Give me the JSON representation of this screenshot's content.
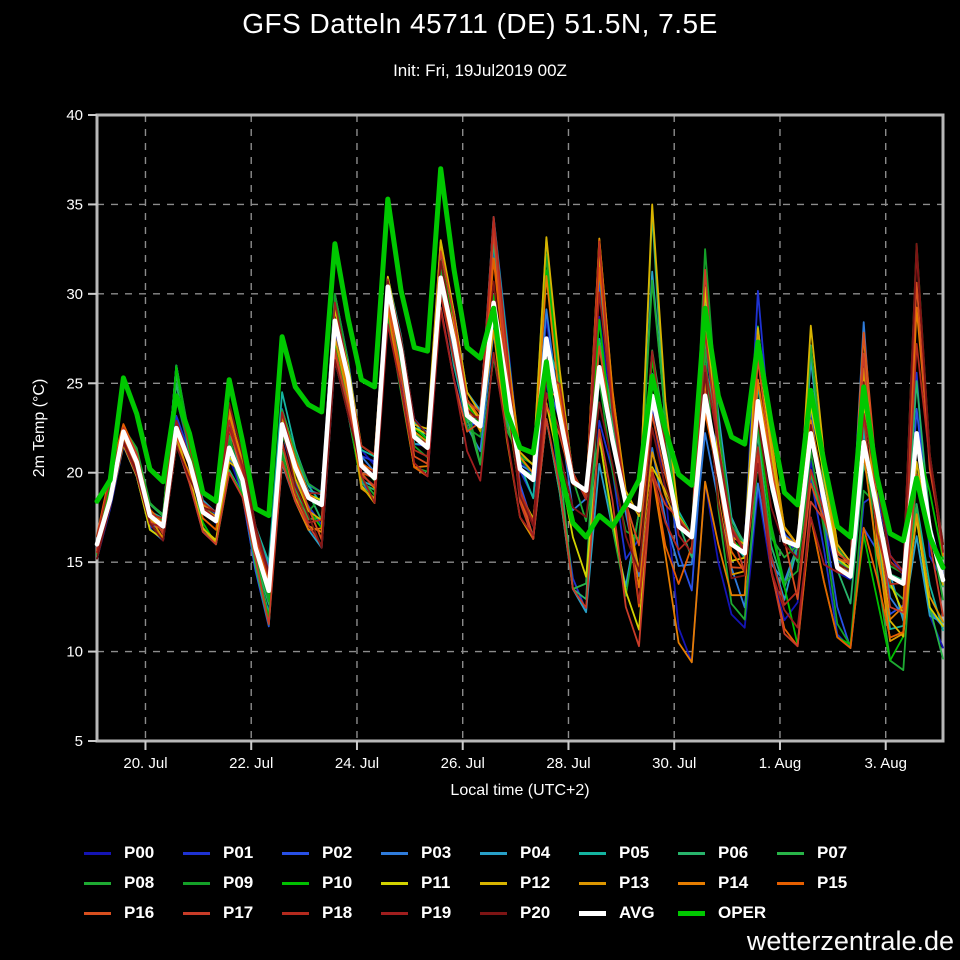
{
  "watermark": "wetterzentrale.de",
  "chart_data": {
    "type": "line",
    "title": "GFS Datteln 45711 (DE) 51.5N, 7.5E",
    "subtitle": "Init: Fri, 19Jul2019 00Z",
    "xlabel": "Local time (UTC+2)",
    "ylabel": "2m Temp (°C)",
    "ylim": [
      5,
      40
    ],
    "yticks": [
      5,
      10,
      15,
      20,
      25,
      30,
      35,
      40
    ],
    "grid": "dashed",
    "legend_position": "bottom",
    "x_unit": "hours since init (19 Jul 2019 02:00 local), 6h steps",
    "x_hours": [
      0,
      6,
      12,
      18,
      24,
      30,
      36,
      42,
      48,
      54,
      60,
      66,
      72,
      78,
      84,
      90,
      96,
      102,
      108,
      114,
      120,
      126,
      132,
      138,
      144,
      150,
      156,
      162,
      168,
      174,
      180,
      186,
      192,
      198,
      204,
      210,
      216,
      222,
      228,
      234,
      240,
      246,
      252,
      258,
      264,
      270,
      276,
      282,
      288,
      294,
      300,
      306,
      312,
      318,
      324,
      330,
      336,
      342,
      348,
      354,
      360,
      366,
      372,
      378,
      384
    ],
    "xticks": [
      {
        "hour": 22,
        "label": "20. Jul"
      },
      {
        "hour": 70,
        "label": "22. Jul"
      },
      {
        "hour": 118,
        "label": "24. Jul"
      },
      {
        "hour": 166,
        "label": "26. Jul"
      },
      {
        "hour": 214,
        "label": "28. Jul"
      },
      {
        "hour": 262,
        "label": "30. Jul"
      },
      {
        "hour": 310,
        "label": "1. Aug"
      },
      {
        "hour": 358,
        "label": "3. Aug"
      }
    ],
    "series": [
      {
        "name": "AVG",
        "color": "#ffffff",
        "width": 4.5,
        "values": [
          16.0,
          18.5,
          22.3,
          20.6,
          17.6,
          17.0,
          22.5,
          20.6,
          17.8,
          17.3,
          21.4,
          19.6,
          15.8,
          13.4,
          22.7,
          20.3,
          18.6,
          18.2,
          28.5,
          25.3,
          20.4,
          19.7,
          30.4,
          26.8,
          22.0,
          21.4,
          30.9,
          27.4,
          23.2,
          22.6,
          29.5,
          24.8,
          20.2,
          19.6,
          27.5,
          23.2,
          19.5,
          19.0,
          25.9,
          21.8,
          18.3,
          17.9,
          24.3,
          20.8,
          17.0,
          16.4,
          24.3,
          20.2,
          16.0,
          15.5,
          24.0,
          19.5,
          16.2,
          15.9,
          22.2,
          18.5,
          14.7,
          14.2,
          21.7,
          18.0,
          14.2,
          13.8,
          22.2,
          16.8,
          14.0
        ]
      },
      {
        "name": "OPER",
        "color": "#00c800",
        "width": 5,
        "values": [
          18.4,
          19.6,
          25.3,
          23.3,
          20.2,
          19.5,
          24.3,
          22.2,
          18.9,
          18.4,
          25.2,
          21.8,
          18.0,
          17.6,
          27.6,
          24.8,
          23.8,
          23.4,
          32.8,
          28.6,
          25.2,
          24.8,
          35.3,
          30.2,
          27.0,
          26.8,
          37.0,
          31.4,
          27.0,
          26.4,
          29.2,
          23.4,
          21.4,
          21.1,
          26.2,
          20.2,
          17.2,
          16.4,
          17.6,
          17.0,
          18.2,
          19.6,
          25.4,
          22.4,
          19.9,
          19.3,
          29.2,
          24.3,
          22.0,
          21.6,
          27.3,
          22.8,
          18.9,
          18.2,
          24.6,
          20.6,
          17.0,
          16.4,
          24.8,
          19.8,
          16.6,
          16.2,
          19.7,
          16.4,
          14.7
        ]
      }
    ],
    "ensemble": {
      "envelope_min": [
        15.2,
        18.0,
        21.5,
        19.8,
        16.8,
        16.2,
        21.5,
        19.4,
        16.7,
        16.0,
        20.0,
        18.4,
        14.5,
        10.7,
        20.5,
        18.4,
        16.8,
        15.8,
        26.3,
        23.0,
        18.8,
        18.3,
        28.3,
        24.5,
        20.3,
        19.8,
        28.8,
        24.9,
        21.0,
        19.5,
        26.5,
        21.4,
        17.5,
        16.3,
        23.0,
        18.9,
        13.5,
        12.2,
        20.5,
        16.9,
        11.5,
        10.3,
        20.0,
        15.4,
        10.5,
        9.4,
        19.5,
        15.0,
        11.8,
        11.0,
        19.0,
        14.5,
        11.0,
        10.3,
        17.5,
        13.9,
        10.8,
        10.2,
        16.5,
        13.0,
        9.5,
        8.8,
        16.0,
        12.0,
        9.6
      ],
      "envelope_max": [
        16.5,
        20.0,
        22.8,
        21.4,
        18.4,
        17.8,
        26.0,
        22.0,
        18.5,
        17.8,
        23.9,
        21.0,
        17.0,
        15.0,
        24.5,
        21.4,
        19.5,
        19.0,
        30.0,
        26.4,
        21.5,
        21.0,
        31.0,
        28.0,
        23.0,
        22.5,
        33.0,
        29.0,
        24.5,
        23.5,
        34.3,
        28.0,
        21.5,
        20.5,
        33.9,
        26.0,
        20.0,
        18.5,
        34.7,
        25.0,
        19.0,
        17.5,
        35.0,
        24.0,
        18.0,
        16.5,
        32.5,
        23.4,
        17.5,
        16.4,
        32.0,
        22.4,
        17.0,
        16.0,
        29.3,
        21.0,
        16.0,
        15.0,
        29.3,
        20.4,
        15.4,
        14.5,
        32.8,
        21.0,
        16.0
      ],
      "members": [
        {
          "name": "P00",
          "color": "#1414b4"
        },
        {
          "name": "P01",
          "color": "#1e32d2"
        },
        {
          "name": "P02",
          "color": "#2850e6"
        },
        {
          "name": "P03",
          "color": "#2f7cdc"
        },
        {
          "name": "P04",
          "color": "#28a0c8"
        },
        {
          "name": "P05",
          "color": "#14b4a0"
        },
        {
          "name": "P06",
          "color": "#28b46c"
        },
        {
          "name": "P07",
          "color": "#28b448"
        },
        {
          "name": "P08",
          "color": "#1eaa32"
        },
        {
          "name": "P09",
          "color": "#14a028"
        },
        {
          "name": "P10",
          "color": "#00c000"
        },
        {
          "name": "P11",
          "color": "#d2d200"
        },
        {
          "name": "P12",
          "color": "#d8b400"
        },
        {
          "name": "P13",
          "color": "#dc9600"
        },
        {
          "name": "P14",
          "color": "#e67d00"
        },
        {
          "name": "P15",
          "color": "#e65f00"
        },
        {
          "name": "P16",
          "color": "#d84f1e"
        },
        {
          "name": "P17",
          "color": "#c83c28"
        },
        {
          "name": "P18",
          "color": "#b42a1e"
        },
        {
          "name": "P19",
          "color": "#a01e1e"
        },
        {
          "name": "P20",
          "color": "#7d1414"
        }
      ]
    }
  },
  "legend": {
    "items": [
      {
        "label": "P00",
        "color": "#1414b4",
        "thick": false
      },
      {
        "label": "P01",
        "color": "#1e32d2",
        "thick": false
      },
      {
        "label": "P02",
        "color": "#2850e6",
        "thick": false
      },
      {
        "label": "P03",
        "color": "#2f7cdc",
        "thick": false
      },
      {
        "label": "P04",
        "color": "#28a0c8",
        "thick": false
      },
      {
        "label": "P05",
        "color": "#14b4a0",
        "thick": false
      },
      {
        "label": "P06",
        "color": "#28b46c",
        "thick": false
      },
      {
        "label": "P07",
        "color": "#28b448",
        "thick": false
      },
      {
        "label": "P08",
        "color": "#1eaa32",
        "thick": false
      },
      {
        "label": "P09",
        "color": "#14a028",
        "thick": false
      },
      {
        "label": "P10",
        "color": "#00c000",
        "thick": false
      },
      {
        "label": "P11",
        "color": "#d2d200",
        "thick": false
      },
      {
        "label": "P12",
        "color": "#d8b400",
        "thick": false
      },
      {
        "label": "P13",
        "color": "#dc9600",
        "thick": false
      },
      {
        "label": "P14",
        "color": "#e67d00",
        "thick": false
      },
      {
        "label": "P15",
        "color": "#e65f00",
        "thick": false
      },
      {
        "label": "P16",
        "color": "#d84f1e",
        "thick": false
      },
      {
        "label": "P17",
        "color": "#c83c28",
        "thick": false
      },
      {
        "label": "P18",
        "color": "#b42a1e",
        "thick": false
      },
      {
        "label": "P19",
        "color": "#a01e1e",
        "thick": false
      },
      {
        "label": "P20",
        "color": "#7d1414",
        "thick": false
      },
      {
        "label": "AVG",
        "color": "#ffffff",
        "thick": true
      },
      {
        "label": "OPER",
        "color": "#00c800",
        "thick": true
      }
    ]
  },
  "plot_style": {
    "background": "#000000",
    "frame_color": "#b8b8b8",
    "grid_color": "#8c8c8c",
    "tick_color": "#cccccc",
    "text_color": "#ffffff"
  }
}
